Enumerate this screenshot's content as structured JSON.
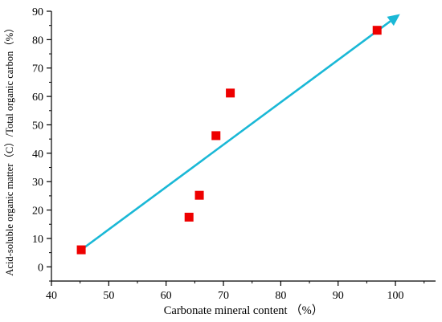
{
  "chart_data": {
    "type": "scatter",
    "title": "",
    "xlabel": "Carbonate mineral content （%）",
    "ylabel": "Acid-soluble organic matter（C）/Total organic carbon（%）",
    "xlim": [
      40,
      107
    ],
    "ylim": [
      -5,
      90
    ],
    "xticks": [
      40,
      50,
      60,
      70,
      80,
      90,
      100
    ],
    "yticks": [
      0,
      10,
      20,
      30,
      40,
      50,
      60,
      70,
      80,
      90
    ],
    "grid": false,
    "legend": "none",
    "series": [
      {
        "marker": "square",
        "color": "#ee0000",
        "x": [
          45.2,
          64.0,
          65.8,
          68.7,
          71.2,
          96.8
        ],
        "y": [
          6,
          17.5,
          25.2,
          46.2,
          61.2,
          83.3
        ]
      }
    ],
    "trend_line": {
      "color": "#1ab8d6",
      "arrow_end": true,
      "from": [
        45.2,
        6
      ],
      "to": [
        100.8,
        89
      ]
    }
  }
}
